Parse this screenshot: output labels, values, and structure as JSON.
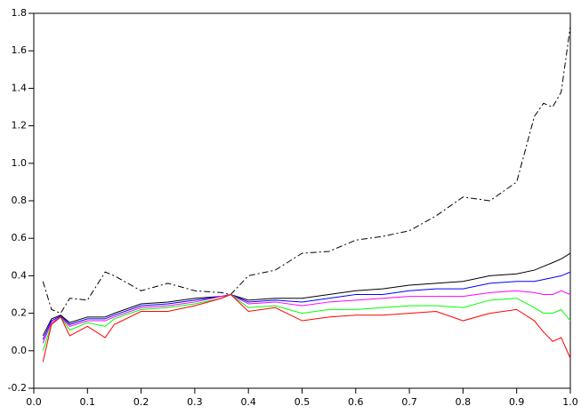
{
  "chart_data": {
    "type": "line",
    "x": [
      0.017,
      0.033,
      0.05,
      0.067,
      0.1,
      0.133,
      0.15,
      0.2,
      0.25,
      0.3,
      0.35,
      0.367,
      0.4,
      0.45,
      0.5,
      0.55,
      0.6,
      0.65,
      0.7,
      0.75,
      0.8,
      0.85,
      0.9,
      0.933,
      0.95,
      0.967,
      0.983,
      1.0
    ],
    "series": [
      {
        "color": "#000000",
        "line_style": "dashdot",
        "values": [
          0.37,
          0.22,
          0.2,
          0.28,
          0.27,
          0.42,
          0.4,
          0.32,
          0.36,
          0.32,
          0.31,
          0.3,
          0.4,
          0.43,
          0.52,
          0.53,
          0.59,
          0.61,
          0.64,
          0.72,
          0.82,
          0.8,
          0.9,
          1.25,
          1.32,
          1.3,
          1.38,
          1.73
        ]
      },
      {
        "color": "#000000",
        "line_style": "solid",
        "values": [
          0.08,
          0.17,
          0.19,
          0.15,
          0.18,
          0.18,
          0.2,
          0.25,
          0.26,
          0.28,
          0.29,
          0.3,
          0.27,
          0.28,
          0.28,
          0.3,
          0.32,
          0.33,
          0.35,
          0.36,
          0.37,
          0.4,
          0.41,
          0.43,
          0.45,
          0.47,
          0.49,
          0.52
        ]
      },
      {
        "color": "#0000ff",
        "line_style": "solid",
        "values": [
          0.06,
          0.16,
          0.185,
          0.14,
          0.17,
          0.17,
          0.19,
          0.24,
          0.25,
          0.27,
          0.29,
          0.3,
          0.26,
          0.27,
          0.26,
          0.28,
          0.3,
          0.3,
          0.32,
          0.33,
          0.33,
          0.36,
          0.37,
          0.37,
          0.38,
          0.39,
          0.4,
          0.42
        ]
      },
      {
        "color": "#ff00ff",
        "line_style": "solid",
        "values": [
          0.04,
          0.15,
          0.18,
          0.13,
          0.16,
          0.16,
          0.18,
          0.23,
          0.24,
          0.26,
          0.29,
          0.3,
          0.25,
          0.26,
          0.24,
          0.26,
          0.27,
          0.28,
          0.29,
          0.29,
          0.29,
          0.31,
          0.32,
          0.31,
          0.3,
          0.3,
          0.32,
          0.3
        ]
      },
      {
        "color": "#00ff00",
        "line_style": "solid",
        "values": [
          0.0,
          0.14,
          0.18,
          0.11,
          0.15,
          0.13,
          0.17,
          0.22,
          0.23,
          0.25,
          0.28,
          0.3,
          0.23,
          0.24,
          0.2,
          0.22,
          0.22,
          0.23,
          0.24,
          0.24,
          0.23,
          0.27,
          0.28,
          0.23,
          0.2,
          0.2,
          0.22,
          0.16
        ]
      },
      {
        "color": "#ff0000",
        "line_style": "solid",
        "values": [
          -0.06,
          0.14,
          0.18,
          0.08,
          0.13,
          0.07,
          0.14,
          0.21,
          0.21,
          0.24,
          0.28,
          0.3,
          0.21,
          0.23,
          0.16,
          0.18,
          0.19,
          0.19,
          0.2,
          0.21,
          0.16,
          0.2,
          0.22,
          0.16,
          0.1,
          0.05,
          0.07,
          -0.04
        ]
      }
    ],
    "xlim": [
      0,
      1
    ],
    "ylim": [
      -0.2,
      1.8
    ],
    "xticks": [
      {
        "value": 0,
        "label": "0.0"
      },
      0.1,
      0.2,
      0.3,
      0.4,
      0.5,
      0.6,
      0.7,
      0.8,
      0.9,
      {
        "value": 1,
        "label": "1.0"
      }
    ],
    "yticks": [
      -0.2,
      {
        "value": 0,
        "label": "0.0"
      },
      0.2,
      0.4,
      0.6,
      0.8,
      {
        "value": 1,
        "label": "1.0"
      },
      1.2,
      1.4,
      1.6,
      1.8
    ],
    "grid": false
  }
}
